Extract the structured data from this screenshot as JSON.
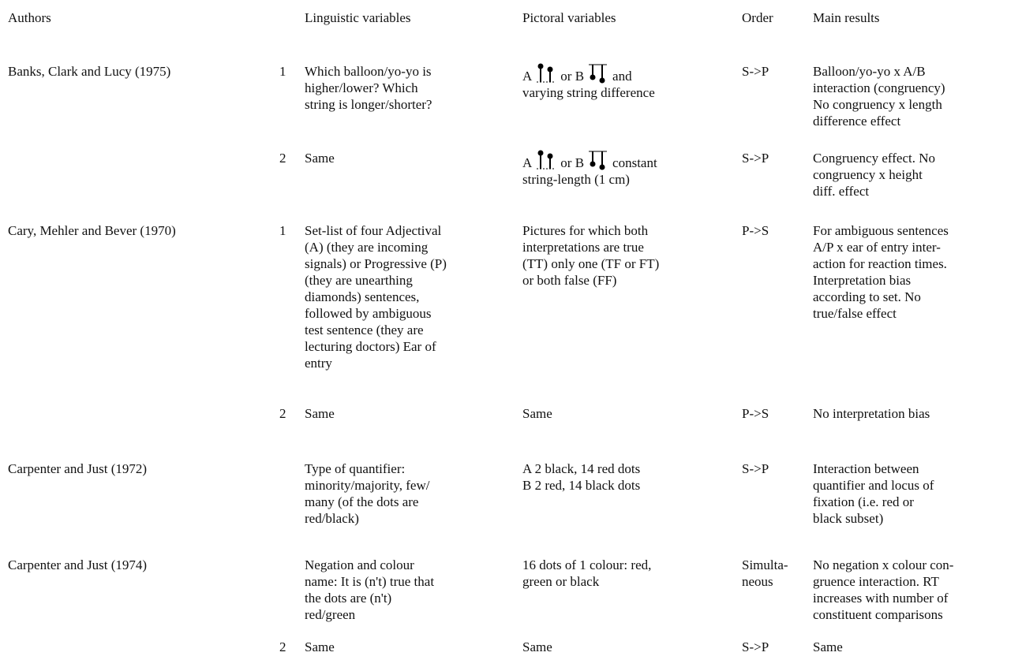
{
  "header": {
    "authors": "Authors",
    "linguistic": "Linguistic variables",
    "pictorial": "Pictoral variables",
    "order": "Order",
    "results": "Main results"
  },
  "rows": [
    {
      "authors": "Banks, Clark and Lucy (1975)",
      "number": "1",
      "linguistic": [
        "Which balloon/yo-yo is",
        "higher/lower? Which",
        "string is longer/shorter?"
      ],
      "pictorial": [
        [
          "A",
          "or B",
          "and"
        ],
        "varying string difference"
      ],
      "order": [
        "S->P"
      ],
      "results": [
        "Balloon/yo-yo x A/B",
        "interaction (congruency)",
        "No congruency x length",
        "difference  effect"
      ]
    },
    {
      "authors": "",
      "number": "2",
      "linguistic": [
        "Same"
      ],
      "pictorial": [
        [
          "A",
          "or B",
          "constant"
        ],
        "string-length (1 cm)"
      ],
      "order": [
        "S->P"
      ],
      "results": [
        "Congruency effect. No",
        "congruency x height",
        "diff. effect"
      ]
    },
    {
      "authors": "Cary, Mehler and Bever (1970)",
      "number": "1",
      "linguistic": [
        "Set-list of four Adjectival",
        "(A) (they are incoming",
        "signals) or Progressive (P)",
        "(they are unearthing",
        "diamonds) sentences,",
        "followed by ambiguous",
        "test sentence (they are",
        "lecturing doctors)  Ear of",
        "entry"
      ],
      "pictorial": [
        "Pictures for which both",
        "interpretations are true",
        "(TT)  only one (TF or FT)",
        "or both false (FF)"
      ],
      "order": [
        "P->S"
      ],
      "results": [
        "For ambiguous sentences",
        "A/P x ear of entry inter-",
        "action for reaction times.",
        "Interpretation bias",
        "according to set. No",
        "true/false  effect"
      ]
    },
    {
      "authors": "",
      "number": "2",
      "linguistic": [
        "Same"
      ],
      "pictorial": [
        "Same"
      ],
      "order": [
        "P->S"
      ],
      "results": [
        "No interpretation bias"
      ]
    },
    {
      "authors": "Carpenter and Just (1972)",
      "number": "",
      "linguistic": [
        "Type of quantifier:",
        "minority/majority, few/",
        "many (of the dots are",
        "red/black)"
      ],
      "pictorial": [
        "A  2 black, 14  red dots",
        "B  2 red, 14  black dots"
      ],
      "order": [
        "S->P"
      ],
      "results": [
        "Interaction between",
        "quantifier and locus of",
        "fixation (i.e. red or",
        "black subset)"
      ]
    },
    {
      "authors": "Carpenter and Just (1974)",
      "number": "",
      "linguistic": [
        "Negation and colour",
        "name: It is (n't) true that",
        "the dots are (n't)",
        "red/green"
      ],
      "pictorial": [
        "16 dots of 1 colour: red,",
        "green or black"
      ],
      "order": [
        "Simulta-",
        "neous"
      ],
      "results": [
        "No negation x colour con-",
        "gruence interaction. RT",
        "increases with number of",
        "constituent comparisons"
      ]
    },
    {
      "authors": "",
      "number": "2",
      "linguistic": [
        "Same"
      ],
      "pictorial": [
        "Same"
      ],
      "order": [
        "S->P"
      ],
      "results": [
        "Same"
      ]
    }
  ]
}
